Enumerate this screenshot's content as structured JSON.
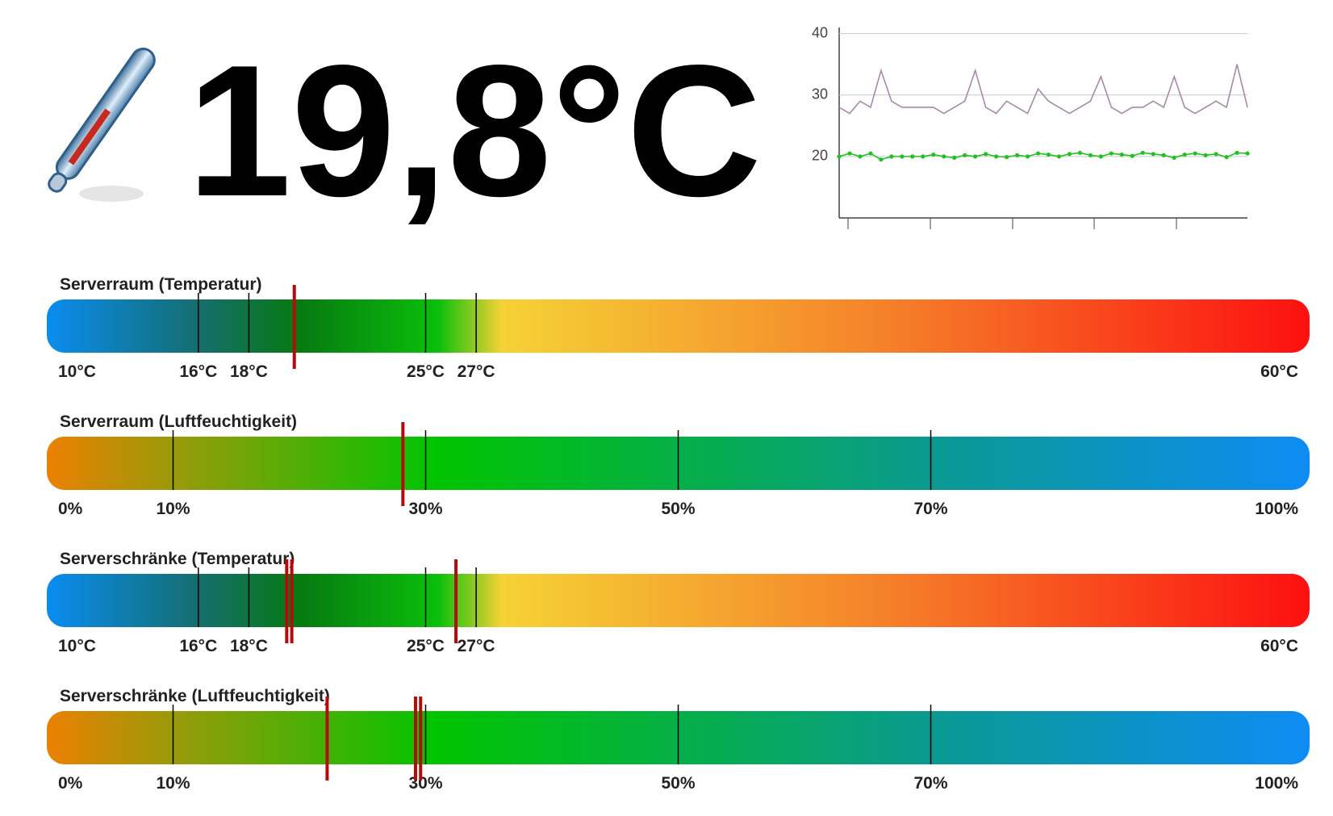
{
  "current_temperature": "19,8°C",
  "chart_data": {
    "type": "line",
    "ylim": [
      10,
      41
    ],
    "yticks": [
      20,
      30,
      40
    ],
    "series": [
      {
        "color": "#a68aa6",
        "values": [
          28,
          27,
          29,
          28,
          34,
          29,
          28,
          28,
          28,
          28,
          27,
          28,
          29,
          34,
          28,
          27,
          29,
          28,
          27,
          31,
          29,
          28,
          27,
          28,
          29,
          33,
          28,
          27,
          28,
          28,
          29,
          28,
          33,
          28,
          27,
          28,
          29,
          28,
          35,
          28
        ]
      },
      {
        "color": "#22c122",
        "values": [
          20,
          20.5,
          20,
          20.5,
          19.5,
          20,
          20,
          20,
          20,
          20.3,
          20,
          19.8,
          20.2,
          20,
          20.4,
          20,
          19.9,
          20.2,
          20,
          20.5,
          20.3,
          20,
          20.4,
          20.6,
          20.2,
          20,
          20.5,
          20.3,
          20.1,
          20.6,
          20.4,
          20.2,
          19.8,
          20.3,
          20.5,
          20.2,
          20.4,
          19.9,
          20.6,
          20.5
        ]
      }
    ]
  },
  "gauges": [
    {
      "title": "Serverraum (Temperatur)",
      "xlim": [
        10,
        60
      ],
      "ticks": [
        {
          "value": 10,
          "label": "10°C"
        },
        {
          "value": 16,
          "label": "16°C"
        },
        {
          "value": 18,
          "label": "18°C"
        },
        {
          "value": 25,
          "label": "25°C"
        },
        {
          "value": 27,
          "label": "27°C"
        },
        {
          "value": 60,
          "label": "60°C"
        }
      ],
      "markers": [
        19.8
      ]
    },
    {
      "title": "Serverraum (Luftfeuchtigkeit)",
      "xlim": [
        0,
        100
      ],
      "ticks": [
        {
          "value": 0,
          "label": "0%"
        },
        {
          "value": 10,
          "label": "10%"
        },
        {
          "value": 30,
          "label": "30%"
        },
        {
          "value": 50,
          "label": "50%"
        },
        {
          "value": 70,
          "label": "70%"
        },
        {
          "value": 100,
          "label": "100%"
        }
      ],
      "markers": [
        28.2
      ]
    },
    {
      "title": "Serverschränke (Temperatur)",
      "xlim": [
        10,
        60
      ],
      "ticks": [
        {
          "value": 10,
          "label": "10°C"
        },
        {
          "value": 16,
          "label": "16°C"
        },
        {
          "value": 18,
          "label": "18°C"
        },
        {
          "value": 25,
          "label": "25°C"
        },
        {
          "value": 27,
          "label": "27°C"
        },
        {
          "value": 60,
          "label": "60°C"
        }
      ],
      "markers": [
        19.5,
        19.7,
        26.2
      ]
    },
    {
      "title": "Serverschränke (Luftfeuchtigkeit)",
      "xlim": [
        0,
        100
      ],
      "ticks": [
        {
          "value": 0,
          "label": "0%"
        },
        {
          "value": 10,
          "label": "10%"
        },
        {
          "value": 30,
          "label": "30%"
        },
        {
          "value": 50,
          "label": "50%"
        },
        {
          "value": 70,
          "label": "70%"
        },
        {
          "value": 100,
          "label": "100%"
        }
      ],
      "markers": [
        22.2,
        29.2,
        29.6
      ]
    }
  ]
}
